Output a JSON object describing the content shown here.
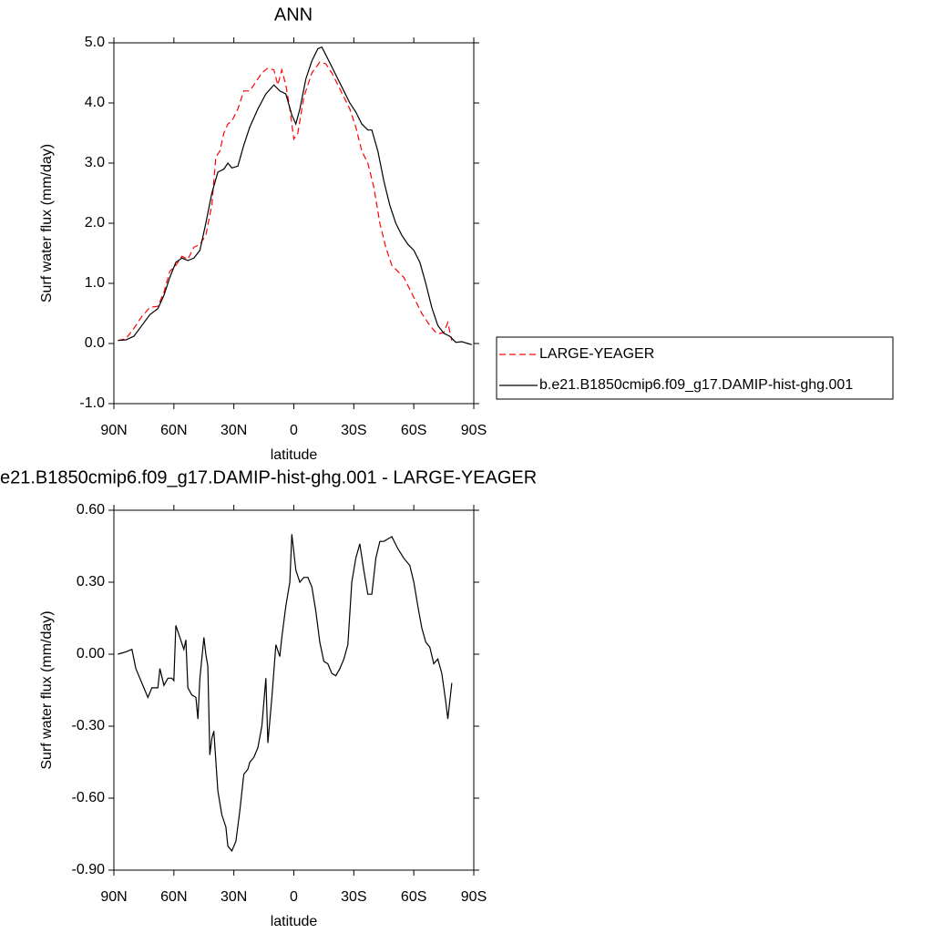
{
  "chart_data": [
    {
      "type": "line",
      "title": "ANN",
      "xlabel": "latitude",
      "ylabel": "Surf water flux (mm/day)",
      "xlim": [
        90,
        -90
      ],
      "ylim": [
        -1,
        5
      ],
      "xticks": [
        {
          "value": 90,
          "label": "90N"
        },
        {
          "value": 60,
          "label": "60N"
        },
        {
          "value": 30,
          "label": "30N"
        },
        0,
        {
          "value": -30,
          "label": "30S"
        },
        {
          "value": -60,
          "label": "60S"
        },
        {
          "value": -90,
          "label": "90S"
        }
      ],
      "yticks": [
        {
          "value": -1,
          "label": "-1.0"
        },
        {
          "value": 0,
          "label": "0.0"
        },
        {
          "value": 1,
          "label": "1.0"
        },
        {
          "value": 2,
          "label": "2.0"
        },
        {
          "value": 3,
          "label": "3.0"
        },
        {
          "value": 4,
          "label": "4.0"
        },
        {
          "value": 5,
          "label": "5.0"
        }
      ],
      "series": [
        {
          "name": "LARGE-YEAGER",
          "color": "#ff0000",
          "dashed": true,
          "x": [
            88,
            84,
            80,
            76,
            72,
            68,
            65,
            62,
            59,
            56,
            53,
            50,
            47,
            44,
            41,
            39,
            37,
            35,
            33,
            31,
            28,
            25,
            22,
            19,
            16,
            13,
            10,
            8,
            6,
            4,
            2,
            0,
            -2,
            -5,
            -9,
            -13,
            -16,
            -19,
            -22,
            -25,
            -28,
            -31,
            -34,
            -37,
            -40,
            -43,
            -46,
            -49,
            -52,
            -55,
            -58,
            -61,
            -64,
            -67,
            -70,
            -72,
            -75,
            -77,
            -79
          ],
          "values": [
            0.05,
            0.08,
            0.25,
            0.45,
            0.6,
            0.62,
            0.85,
            1.2,
            1.3,
            1.45,
            1.4,
            1.6,
            1.65,
            1.8,
            2.3,
            3.1,
            3.2,
            3.5,
            3.65,
            3.7,
            3.9,
            4.2,
            4.2,
            4.35,
            4.5,
            4.58,
            4.55,
            4.3,
            4.55,
            4.3,
            3.9,
            3.4,
            3.5,
            4.1,
            4.5,
            4.68,
            4.65,
            4.5,
            4.3,
            4.1,
            3.9,
            3.6,
            3.2,
            3.0,
            2.6,
            2.0,
            1.6,
            1.3,
            1.2,
            1.1,
            0.9,
            0.7,
            0.5,
            0.35,
            0.22,
            0.16,
            0.18,
            0.35,
            0.05
          ]
        },
        {
          "name": "b.e21.B1850cmip6.f09_g17.DAMIP-hist-ghg.001",
          "color": "#000000",
          "dashed": false,
          "x": [
            88,
            84,
            80,
            76,
            72,
            68,
            65,
            62,
            59,
            56,
            53,
            50,
            47,
            44,
            41,
            38,
            35,
            33,
            31,
            28,
            25,
            22,
            18,
            14,
            10,
            7,
            4,
            1,
            -1,
            -3,
            -6,
            -9,
            -12,
            -14,
            -16,
            -19,
            -22,
            -25,
            -28,
            -31,
            -34,
            -37,
            -39,
            -42,
            -45,
            -48,
            -51,
            -54,
            -57,
            -60,
            -63,
            -66,
            -69,
            -72,
            -75,
            -78,
            -81,
            -84,
            -87,
            -89
          ],
          "values": [
            0.05,
            0.06,
            0.12,
            0.3,
            0.48,
            0.58,
            0.8,
            1.1,
            1.35,
            1.42,
            1.38,
            1.42,
            1.55,
            2.0,
            2.5,
            2.85,
            2.9,
            3.0,
            2.92,
            2.95,
            3.3,
            3.6,
            3.9,
            4.15,
            4.3,
            4.2,
            4.15,
            3.8,
            3.65,
            3.9,
            4.4,
            4.7,
            4.9,
            4.93,
            4.8,
            4.6,
            4.4,
            4.2,
            4.0,
            3.85,
            3.65,
            3.55,
            3.55,
            3.2,
            2.7,
            2.3,
            2.0,
            1.8,
            1.65,
            1.55,
            1.35,
            1.0,
            0.6,
            0.3,
            0.17,
            0.12,
            0.02,
            0.03,
            0.0,
            -0.02
          ]
        }
      ]
    },
    {
      "type": "line",
      "title": "e21.B1850cmip6.f09_g17.DAMIP-hist-ghg.001 - LARGE-YEAGER",
      "xlabel": "latitude",
      "ylabel": "Surf water flux (mm/day)",
      "xlim": [
        90,
        -90
      ],
      "ylim": [
        -0.9,
        0.6
      ],
      "xticks": [
        {
          "value": 90,
          "label": "90N"
        },
        {
          "value": 60,
          "label": "60N"
        },
        {
          "value": 30,
          "label": "30N"
        },
        0,
        {
          "value": -30,
          "label": "30S"
        },
        {
          "value": -60,
          "label": "60S"
        },
        {
          "value": -90,
          "label": "90S"
        }
      ],
      "yticks": [
        {
          "value": -0.9,
          "label": "-0.90"
        },
        {
          "value": -0.6,
          "label": "-0.60"
        },
        {
          "value": -0.3,
          "label": "-0.30"
        },
        {
          "value": 0,
          "label": "0.00"
        },
        {
          "value": 0.3,
          "label": "0.30"
        },
        {
          "value": 0.6,
          "label": "0.60"
        }
      ],
      "series": [
        {
          "color": "#000000",
          "dashed": false,
          "x": [
            88,
            84,
            81,
            79,
            76,
            73,
            71,
            68,
            67,
            65,
            63,
            61,
            60,
            59,
            57,
            55,
            54,
            53,
            51,
            49,
            48,
            47,
            45,
            44,
            43,
            42,
            41,
            40,
            38,
            36,
            34,
            33,
            31,
            29,
            27,
            25,
            23,
            22,
            20,
            18,
            16,
            14,
            13,
            11,
            9,
            7,
            6,
            4,
            2,
            1,
            -1,
            -3,
            -5,
            -7,
            -9,
            -11,
            -13,
            -15,
            -17,
            -19,
            -21,
            -23,
            -25,
            -27,
            -29,
            -31,
            -33,
            -35,
            -37,
            -39,
            -41,
            -43,
            -45,
            -47,
            -49,
            -52,
            -55,
            -58,
            -60,
            -62,
            -64,
            -66,
            -68,
            -70,
            -72,
            -74,
            -76,
            -77,
            -79
          ],
          "values": [
            0.0,
            0.01,
            0.02,
            -0.06,
            -0.12,
            -0.18,
            -0.14,
            -0.14,
            -0.06,
            -0.13,
            -0.1,
            -0.1,
            -0.11,
            0.12,
            0.07,
            0.02,
            0.06,
            -0.14,
            -0.17,
            -0.18,
            -0.27,
            -0.1,
            0.07,
            0.0,
            -0.05,
            -0.42,
            -0.35,
            -0.32,
            -0.57,
            -0.67,
            -0.72,
            -0.8,
            -0.82,
            -0.78,
            -0.65,
            -0.5,
            -0.48,
            -0.45,
            -0.43,
            -0.39,
            -0.3,
            -0.1,
            -0.37,
            -0.18,
            0.04,
            -0.01,
            0.07,
            0.2,
            0.3,
            0.5,
            0.35,
            0.3,
            0.32,
            0.32,
            0.28,
            0.18,
            0.05,
            -0.03,
            -0.04,
            -0.08,
            -0.09,
            -0.06,
            -0.02,
            0.04,
            0.3,
            0.4,
            0.46,
            0.35,
            0.25,
            0.25,
            0.4,
            0.47,
            0.47,
            0.48,
            0.49,
            0.44,
            0.4,
            0.37,
            0.3,
            0.2,
            0.11,
            0.05,
            0.03,
            -0.04,
            -0.02,
            -0.08,
            -0.2,
            -0.27,
            -0.12
          ]
        }
      ]
    }
  ]
}
